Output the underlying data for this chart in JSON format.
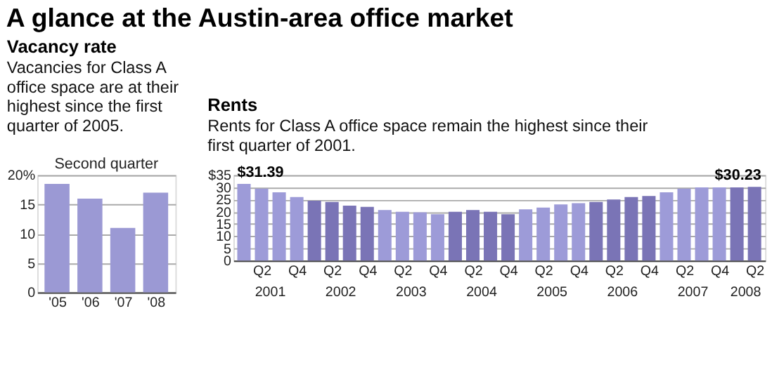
{
  "chart_data": [
    {
      "type": "bar",
      "title": "Vacancy rate",
      "subtitle": "Vacancies for Class A office space are at their highest since the first quarter of 2005.",
      "annotations": [
        "A glance at the Austin-area office market",
        "Second quarter"
      ],
      "categories": [
        "'05",
        "'06",
        "'07",
        "'08"
      ],
      "values": [
        18.5,
        16,
        11,
        17
      ],
      "color": "#9b99d4",
      "ylim": [
        0,
        20
      ],
      "yticks": [
        0,
        5,
        10,
        15,
        {
          "value": 20,
          "label": "20%"
        }
      ],
      "grid": "y"
    },
    {
      "type": "bar",
      "title": "Rents",
      "subtitle": "Rents for Class A office space remain the highest since their first quarter of 2001.",
      "annotations": [
        "2001",
        "2002",
        "2003",
        "2004",
        "2005",
        "2006",
        "2007",
        "2008"
      ],
      "categories": [
        null,
        "Q2",
        null,
        "Q4",
        null,
        "Q2",
        null,
        "Q4",
        null,
        "Q2",
        null,
        "Q4",
        null,
        "Q2",
        null,
        "Q4",
        null,
        "Q2",
        null,
        "Q4",
        null,
        "Q2",
        null,
        "Q4",
        null,
        "Q2",
        null,
        "Q4",
        null,
        "Q2"
      ],
      "values": [
        31.39,
        29.5,
        28,
        26,
        24.5,
        24,
        22.5,
        22,
        20.7,
        20,
        19.8,
        19,
        20,
        20.7,
        20,
        19,
        21,
        21.7,
        23,
        23.5,
        24,
        25,
        26,
        26.5,
        28,
        29.5,
        30,
        30,
        30,
        30.23
      ],
      "colors": [
        "#9d9bd8",
        "#9d9bd8",
        "#9d9bd8",
        "#9d9bd8",
        "#7a74b6",
        "#7a74b6",
        "#7a74b6",
        "#7a74b6",
        "#9d9bd8",
        "#9d9bd8",
        "#9d9bd8",
        "#9d9bd8",
        "#7a74b6",
        "#7a74b6",
        "#7a74b6",
        "#7a74b6",
        "#9d9bd8",
        "#9d9bd8",
        "#9d9bd8",
        "#9d9bd8",
        "#7a74b6",
        "#7a74b6",
        "#7a74b6",
        "#7a74b6",
        "#9d9bd8",
        "#9d9bd8",
        "#9d9bd8",
        "#9d9bd8",
        "#7a74b6",
        "#7a74b6"
      ],
      "value_labels": [
        "$31.39",
        null,
        null,
        null,
        null,
        null,
        null,
        null,
        null,
        null,
        null,
        null,
        null,
        null,
        null,
        null,
        null,
        null,
        null,
        null,
        null,
        null,
        null,
        null,
        null,
        null,
        null,
        null,
        null,
        "$30.23"
      ],
      "ylim": [
        0,
        35
      ],
      "yticks": [
        0,
        5,
        10,
        15,
        20,
        25,
        30,
        {
          "value": 35,
          "label": "$35"
        }
      ],
      "grid": "y"
    }
  ]
}
